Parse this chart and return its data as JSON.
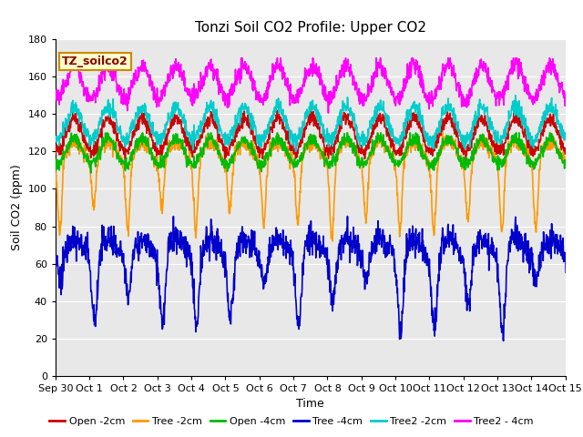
{
  "title": "Tonzi Soil CO2 Profile: Upper CO2",
  "xlabel": "Time",
  "ylabel": "Soil CO2 (ppm)",
  "ylim": [
    0,
    180
  ],
  "yticks": [
    0,
    20,
    40,
    60,
    80,
    100,
    120,
    140,
    160,
    180
  ],
  "bg_outside": "#ffffff",
  "bg_plot": "#e8e8e8",
  "grid_color": "#ffffff",
  "series": [
    {
      "label": "Open -2cm",
      "color": "#cc0000",
      "lw": 1.2
    },
    {
      "label": "Tree -2cm",
      "color": "#ff9900",
      "lw": 1.2
    },
    {
      "label": "Open -4cm",
      "color": "#00bb00",
      "lw": 1.2
    },
    {
      "label": "Tree -4cm",
      "color": "#0000cc",
      "lw": 1.2
    },
    {
      "label": "Tree2 -2cm",
      "color": "#00cccc",
      "lw": 1.2
    },
    {
      "label": "Tree2 - 4cm",
      "color": "#ff00ff",
      "lw": 1.2
    }
  ],
  "x_tick_labels": [
    "Sep 30",
    "Oct 1",
    "Oct 2",
    "Oct 3",
    "Oct 4",
    "Oct 5",
    "Oct 6",
    "Oct 7",
    "Oct 8",
    "Oct 9",
    "Oct 10",
    "Oct 11",
    "Oct 12",
    "Oct 13",
    "Oct 14",
    "Oct 15"
  ],
  "n_days": 16,
  "ppd": 96,
  "file_label": "TZ_soilco2",
  "title_fontsize": 11,
  "label_fontsize": 9,
  "tick_fontsize": 8,
  "legend_fontsize": 8
}
